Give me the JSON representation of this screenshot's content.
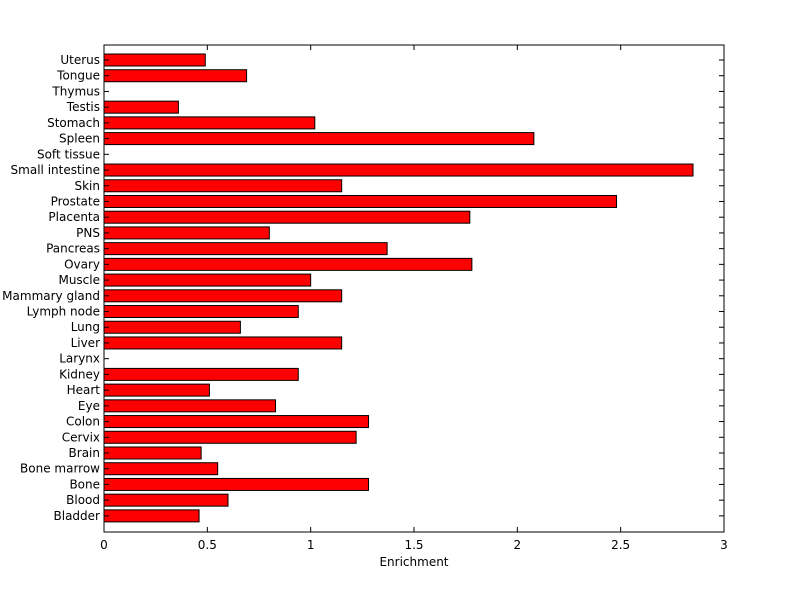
{
  "chart_data": {
    "type": "bar",
    "orientation": "horizontal",
    "categories": [
      "Uterus",
      "Tongue",
      "Thymus",
      "Testis",
      "Stomach",
      "Spleen",
      "Soft tissue",
      "Small intestine",
      "Skin",
      "Prostate",
      "Placenta",
      "PNS",
      "Pancreas",
      "Ovary",
      "Muscle",
      "Mammary gland",
      "Lymph node",
      "Lung",
      "Liver",
      "Larynx",
      "Kidney",
      "Heart",
      "Eye",
      "Colon",
      "Cervix",
      "Brain",
      "Bone marrow",
      "Bone",
      "Blood",
      "Bladder"
    ],
    "values": [
      0.49,
      0.69,
      0,
      0.36,
      1.02,
      2.08,
      0,
      2.85,
      1.15,
      2.48,
      1.77,
      0.8,
      1.37,
      1.78,
      1.0,
      1.15,
      0.94,
      0.66,
      1.15,
      0,
      0.94,
      0.51,
      0.83,
      1.28,
      1.22,
      0.47,
      0.55,
      1.28,
      0.6,
      0.46
    ],
    "title": "",
    "xlabel": "Enrichment",
    "ylabel": "",
    "xlim": [
      0,
      3
    ],
    "xticks": [
      0,
      0.5,
      1,
      1.5,
      2,
      2.5,
      3
    ],
    "xtick_labels": [
      "0",
      "0.5",
      "1",
      "1.5",
      "2",
      "2.5",
      "3"
    ],
    "grid": false,
    "legend": "none",
    "colors": {
      "bar_fill": "#ff0000",
      "bar_edge": "#000000",
      "axis": "#000000"
    }
  }
}
